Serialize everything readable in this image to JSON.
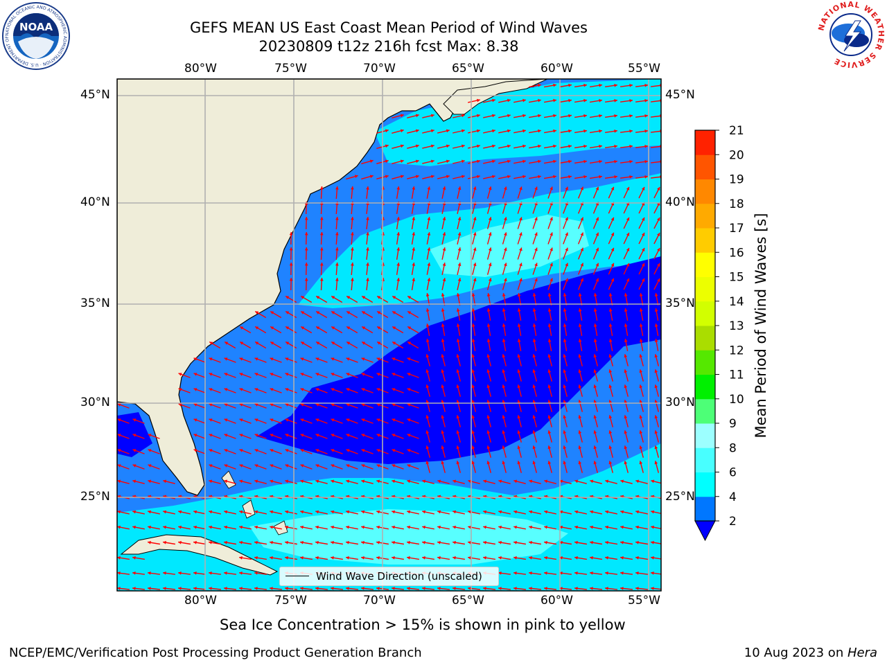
{
  "header": {
    "title_line1": "GEFS MEAN US East Coast Mean Period of Wind Waves",
    "title_line2": "20230809 t12z 216h fcst   Max: 8.38"
  },
  "logos": {
    "left": {
      "icon": "noaa-logo-icon",
      "text": "NOAA",
      "ring_text": "NATIONAL OCEANIC AND ATMOSPHERIC ADMINISTRATION · U.S. DEPARTMENT OF COMMERCE"
    },
    "right": {
      "icon": "nws-logo-icon",
      "ring_text": "NATIONAL WEATHER SERVICE"
    }
  },
  "map": {
    "lon_labels": [
      "80°W",
      "75°W",
      "70°W",
      "65°W",
      "60°W",
      "55°W"
    ],
    "lat_labels": [
      "45°N",
      "40°N",
      "35°N",
      "30°N",
      "25°N"
    ],
    "legend_label": "Wind Wave Direction (unscaled)",
    "colors": {
      "land": "#efedd9",
      "level_2_4": "#1f83ff",
      "level_below_2": "#0000ff",
      "level_4_6": "#00e8ff",
      "level_6_8": "#58ffff",
      "arrow": "#ff0000",
      "grid": "#b0b0b0"
    }
  },
  "colorbar": {
    "label": "Mean Period of Wind Waves [s]",
    "ticks": [
      "2",
      "4",
      "6",
      "8",
      "9",
      "10",
      "11",
      "12",
      "13",
      "14",
      "15",
      "16",
      "17",
      "18",
      "19",
      "20",
      "21"
    ],
    "colors": [
      "#0077ff",
      "#00ffff",
      "#48ffff",
      "#9cffff",
      "#4dff77",
      "#00f000",
      "#55e800",
      "#aadd00",
      "#d2ff00",
      "#ecff00",
      "#ffff00",
      "#ffcc00",
      "#ffaa00",
      "#ff8800",
      "#ff5500",
      "#ff2200",
      "#ff0000"
    ],
    "under_color": "#0000ff"
  },
  "footer": {
    "note": "Sea Ice Concentration > 15% is shown in pink to yellow",
    "credit": "NCEP/EMC/Verification Post Processing Product Generation Branch",
    "date": "10 Aug 2023 on ",
    "machine": "Hera"
  }
}
